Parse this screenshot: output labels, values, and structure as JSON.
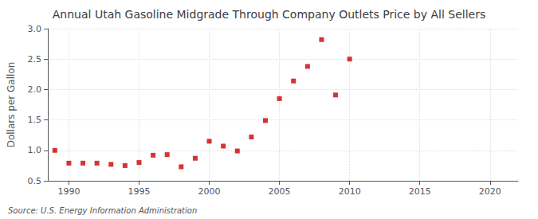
{
  "chart_data": {
    "type": "scatter",
    "title": "Annual Utah Gasoline Midgrade Through Company Outlets Price by All Sellers",
    "y_label": "Dollars per Gallon",
    "source": "Source: U.S. Energy Information Administration",
    "x": [
      1989,
      1990,
      1991,
      1992,
      1993,
      1994,
      1995,
      1996,
      1997,
      1998,
      1999,
      2000,
      2001,
      2002,
      2003,
      2004,
      2005,
      2006,
      2007,
      2008,
      2009,
      2010
    ],
    "values": [
      1.0,
      0.79,
      0.79,
      0.79,
      0.77,
      0.75,
      0.8,
      0.92,
      0.93,
      0.73,
      0.87,
      1.15,
      1.07,
      0.99,
      1.22,
      1.49,
      1.85,
      2.14,
      2.38,
      2.82,
      1.91,
      2.5
    ],
    "color": "#cc0000",
    "marker": "square",
    "xlim": [
      1988.5,
      2022
    ],
    "ylim": [
      0.5,
      3.0
    ],
    "xticks": [
      1990,
      1995,
      2000,
      2005,
      2010,
      2015,
      2020
    ],
    "yticks": [
      0.5,
      {
        "value": 1.0,
        "label": "1.0"
      },
      1.5,
      {
        "value": 2.0,
        "label": "2.0"
      },
      2.5,
      {
        "value": 3.0,
        "label": "3.0"
      }
    ],
    "grid": true
  }
}
